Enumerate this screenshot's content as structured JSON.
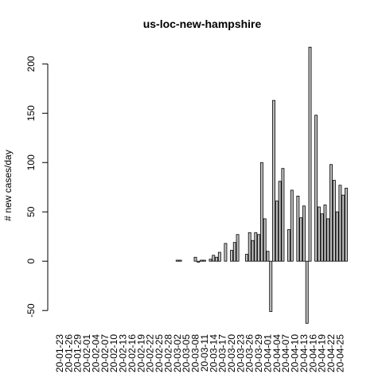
{
  "chart_data": {
    "type": "bar",
    "title": "us-loc-new-hampshire",
    "y_label": "# new cases/day",
    "categories": [
      "20-01-23",
      null,
      null,
      "20-01-26",
      null,
      null,
      "20-01-29",
      null,
      null,
      "20-02-01",
      null,
      null,
      "20-02-04",
      null,
      null,
      "20-02-07",
      null,
      null,
      "20-02-10",
      null,
      null,
      "20-02-13",
      null,
      null,
      "20-02-16",
      null,
      null,
      "20-02-19",
      null,
      null,
      "20-02-22",
      null,
      null,
      "20-02-25",
      null,
      null,
      "20-02-28",
      null,
      null,
      "20-03-02",
      null,
      null,
      "20-03-05",
      null,
      null,
      "20-03-08",
      null,
      null,
      "20-03-11",
      null,
      null,
      "20-03-14",
      null,
      null,
      "20-03-17",
      null,
      null,
      "20-03-20",
      null,
      null,
      "20-03-23",
      null,
      null,
      "20-03-26",
      null,
      null,
      "20-03-29",
      null,
      null,
      "20-04-01",
      null,
      null,
      "20-04-04",
      null,
      null,
      "20-04-07",
      null,
      null,
      "20-04-10",
      null,
      null,
      "20-04-13",
      null,
      null,
      "20-04-16",
      null,
      null,
      "20-04-19",
      null,
      null,
      "20-04-22",
      null,
      null,
      "20-04-25",
      null,
      null
    ],
    "values": [
      0,
      0,
      0,
      0,
      0,
      0,
      0,
      0,
      0,
      0,
      0,
      0,
      0,
      0,
      0,
      0,
      0,
      0,
      0,
      0,
      0,
      0,
      0,
      0,
      0,
      0,
      0,
      0,
      0,
      0,
      0,
      0,
      0,
      0,
      0,
      0,
      0,
      0,
      0,
      1,
      1,
      0,
      0,
      0,
      0,
      4,
      -1,
      1,
      1,
      0,
      2,
      6,
      4,
      9,
      0,
      18,
      0,
      11,
      19,
      27,
      0,
      0,
      7,
      29,
      21,
      29,
      27,
      100,
      43,
      10,
      -51,
      163,
      61,
      81,
      94,
      0,
      32,
      72,
      0,
      66,
      44,
      56,
      -63,
      217,
      0,
      148,
      55,
      48,
      57,
      43,
      98,
      82,
      50,
      77,
      67,
      74
    ],
    "color": "#bebebe",
    "ylim": [
      -66,
      218
    ],
    "yticks": [
      -50,
      0,
      50,
      100,
      150,
      200
    ]
  }
}
